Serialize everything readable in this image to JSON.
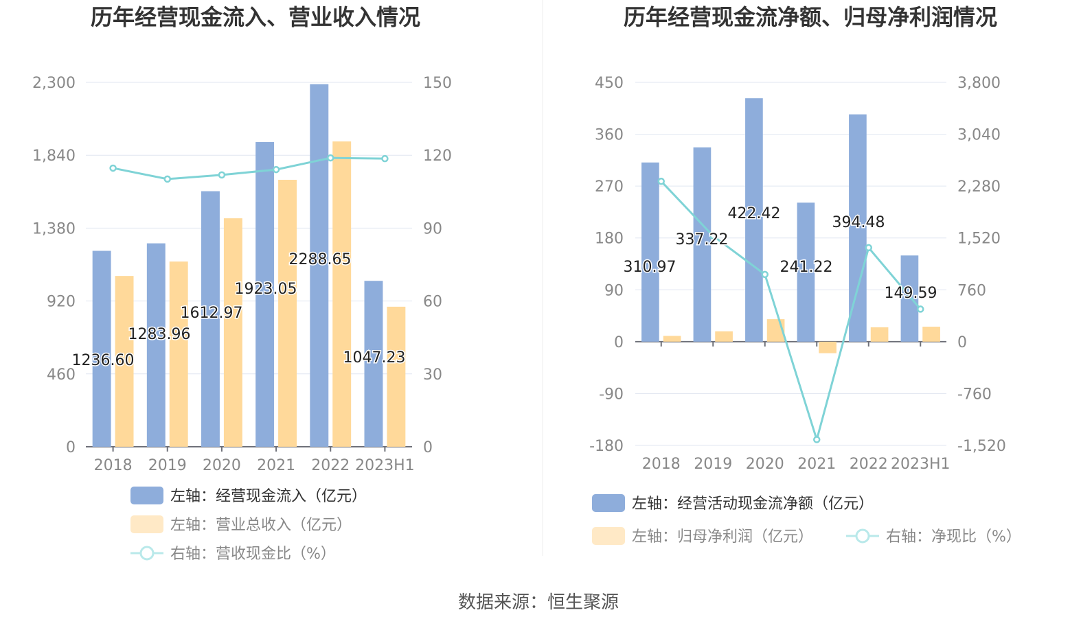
{
  "source": "数据来源：恒生聚源",
  "colors": {
    "bar1": "#8eaddb",
    "bar2": "#ffd99a",
    "line": "#7fd3d6",
    "grid": "#e0e6f1"
  },
  "chart_data": [
    {
      "type": "bar",
      "title": "历年经营现金流入、营业收入情况",
      "categories": [
        "2018",
        "2019",
        "2020",
        "2021",
        "2022",
        "2023H1"
      ],
      "left_axis": {
        "ylim": [
          0,
          2300
        ],
        "ticks": [
          "0",
          "460",
          "920",
          "1,380",
          "1,840",
          "2,300"
        ]
      },
      "right_axis": {
        "ylim": [
          0,
          150
        ],
        "ticks": [
          "0",
          "30",
          "60",
          "90",
          "120",
          "150"
        ]
      },
      "series": [
        {
          "name": "左轴：经营现金流入（亿元）",
          "type": "bar",
          "axis": "left",
          "values": [
            1236.6,
            1283.96,
            1612.97,
            1923.05,
            2288.65,
            1047.23
          ],
          "labels": [
            "1236.60",
            "1283.96",
            "1612.97",
            "1923.05",
            "2288.65",
            "1047.23"
          ]
        },
        {
          "name": "左轴：营业总收入（亿元）",
          "type": "bar",
          "axis": "left",
          "values": [
            1078,
            1169,
            1442,
            1685,
            1927,
            884
          ]
        },
        {
          "name": "右轴：营收现金比（%）",
          "type": "line",
          "axis": "right",
          "values": [
            114.7,
            110.2,
            111.9,
            114.1,
            118.9,
            118.6
          ]
        }
      ],
      "grid": true,
      "legend_position": "bottom-left"
    },
    {
      "type": "bar",
      "title": "历年经营现金流净额、归母净利润情况",
      "categories": [
        "2018",
        "2019",
        "2020",
        "2021",
        "2022",
        "2023H1"
      ],
      "left_axis": {
        "ylim": [
          -180,
          450
        ],
        "ticks": [
          "-180",
          "-90",
          "0",
          "90",
          "180",
          "270",
          "360",
          "450"
        ]
      },
      "right_axis": {
        "ylim": [
          -1520,
          3800
        ],
        "ticks": [
          "-1,520",
          "-760",
          "0",
          "760",
          "1,520",
          "2,280",
          "3,040",
          "3,800"
        ]
      },
      "series": [
        {
          "name": "左轴：经营活动现金流净额（亿元）",
          "type": "bar",
          "axis": "left",
          "values": [
            310.97,
            337.22,
            422.42,
            241.22,
            394.48,
            149.59
          ],
          "labels": [
            "310.97",
            "337.22",
            "422.42",
            "241.22",
            "394.48",
            "149.59"
          ]
        },
        {
          "name": "左轴：归母净利润（亿元）",
          "type": "bar",
          "axis": "left",
          "values": [
            10,
            18,
            39,
            -20,
            25,
            26
          ]
        },
        {
          "name": "右轴：净现比（%）",
          "type": "line",
          "axis": "right",
          "values": [
            2350,
            1550,
            985,
            -1435,
            1377,
            477
          ]
        }
      ],
      "grid": true,
      "legend_position": "bottom-left"
    }
  ]
}
